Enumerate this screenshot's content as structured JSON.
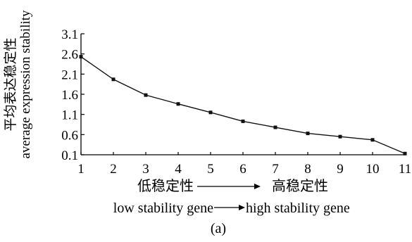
{
  "chart_data": {
    "type": "line",
    "title": "",
    "ylabel_cn": "平均表达稳定性",
    "ylabel_en": "average expression stability",
    "xlabel_cn_left": "低稳定性",
    "xlabel_cn_right": "高稳定性",
    "xlabel_en_left": "low stability gene",
    "xlabel_en_right": "high stability gene",
    "caption": "(a)",
    "x": [
      1,
      2,
      3,
      4,
      5,
      6,
      7,
      8,
      9,
      10,
      11
    ],
    "xticks": [
      "1",
      "2",
      "3",
      "4",
      "5",
      "6",
      "7",
      "8",
      "9",
      "10",
      "11"
    ],
    "yticks": [
      "0.1",
      "0.6",
      "1.1",
      "1.6",
      "2.1",
      "2.6",
      "3.1"
    ],
    "ytick_values": [
      0.1,
      0.6,
      1.1,
      1.6,
      2.1,
      2.6,
      3.1
    ],
    "series": [
      {
        "values": [
          2.53,
          1.97,
          1.58,
          1.36,
          1.15,
          0.93,
          0.78,
          0.63,
          0.55,
          0.47,
          0.13
        ]
      }
    ],
    "xlim": [
      1,
      11
    ],
    "ylim": [
      0.1,
      3.1
    ],
    "grid": false
  }
}
